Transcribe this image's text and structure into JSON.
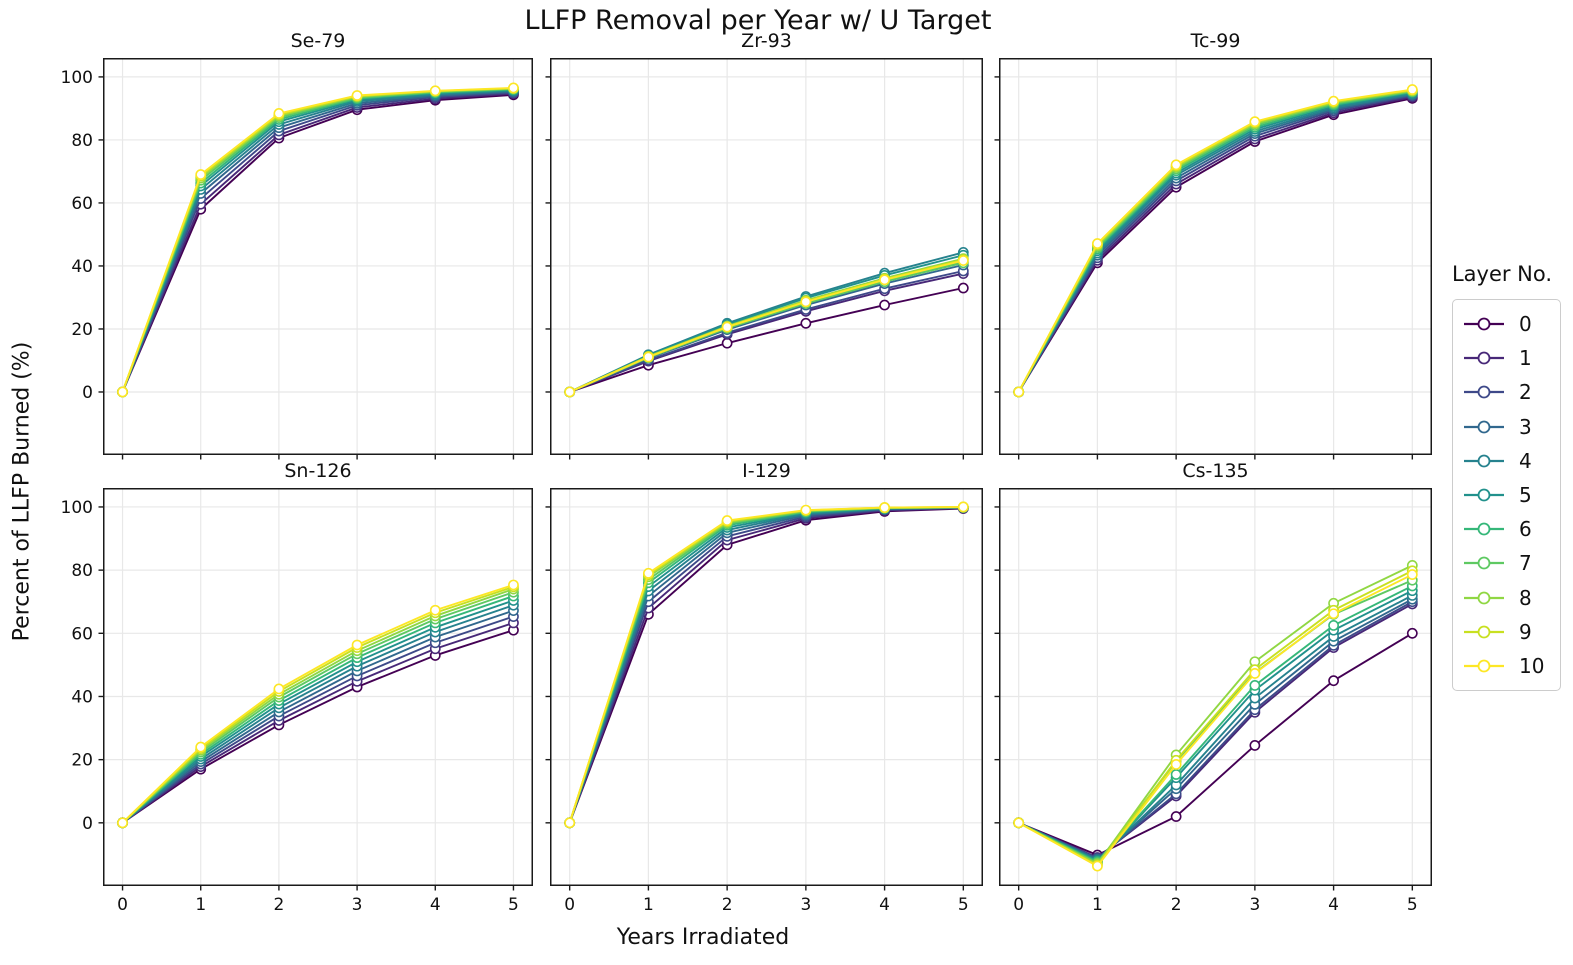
{
  "figure": {
    "title": "LLFP Removal per Year w/ U Target",
    "xlabel": "Years Irradiated",
    "ylabel": "Percent of LLFP Burned (%)"
  },
  "legend": {
    "title": "Layer No.",
    "entries": [
      {
        "label": "0",
        "color": "#440154"
      },
      {
        "label": "1",
        "color": "#482878"
      },
      {
        "label": "2",
        "color": "#3e4989"
      },
      {
        "label": "3",
        "color": "#31688e"
      },
      {
        "label": "4",
        "color": "#26828e"
      },
      {
        "label": "5",
        "color": "#21918c"
      },
      {
        "label": "6",
        "color": "#35b779"
      },
      {
        "label": "7",
        "color": "#5ec962"
      },
      {
        "label": "8",
        "color": "#90d743"
      },
      {
        "label": "9",
        "color": "#c8e020"
      },
      {
        "label": "10",
        "color": "#fde725"
      }
    ]
  },
  "axes": {
    "xlim": [
      -0.25,
      5.25
    ],
    "ylim": [
      -20,
      106
    ],
    "x_ticks": [
      0,
      1,
      2,
      3,
      4,
      5
    ],
    "y_ticks": [
      0,
      20,
      40,
      60,
      80,
      100
    ],
    "grid": true,
    "grid_color": "#e8e8e8",
    "spine_color": "#1a1a1a",
    "marker_fill": "#ffffff"
  },
  "chart_data": [
    {
      "type": "line",
      "title": "Se-79",
      "x": [
        0,
        1,
        2,
        3,
        4,
        5
      ],
      "series": [
        {
          "name": "0",
          "values": [
            0,
            58.0,
            80.6,
            89.6,
            92.6,
            94.3
          ]
        },
        {
          "name": "1",
          "values": [
            0,
            59.6,
            81.6,
            90.3,
            93.1,
            94.7
          ]
        },
        {
          "name": "2",
          "values": [
            0,
            61.4,
            82.8,
            91.0,
            93.6,
            95.0
          ]
        },
        {
          "name": "3",
          "values": [
            0,
            63.0,
            83.9,
            91.6,
            94.0,
            95.3
          ]
        },
        {
          "name": "4",
          "values": [
            0,
            64.3,
            84.9,
            92.2,
            94.4,
            95.6
          ]
        },
        {
          "name": "5",
          "values": [
            0,
            65.4,
            85.8,
            92.7,
            94.7,
            95.8
          ]
        },
        {
          "name": "6",
          "values": [
            0,
            66.3,
            86.5,
            93.1,
            95.0,
            96.0
          ]
        },
        {
          "name": "7",
          "values": [
            0,
            67.2,
            87.1,
            93.4,
            95.2,
            96.2
          ]
        },
        {
          "name": "8",
          "values": [
            0,
            67.9,
            87.6,
            93.7,
            95.4,
            96.3
          ]
        },
        {
          "name": "9",
          "values": [
            0,
            68.5,
            88.0,
            93.9,
            95.5,
            96.4
          ]
        },
        {
          "name": "10",
          "values": [
            0,
            69.0,
            88.4,
            94.1,
            95.6,
            96.5
          ]
        }
      ]
    },
    {
      "type": "line",
      "title": "Zr-93",
      "x": [
        0,
        1,
        2,
        3,
        4,
        5
      ],
      "series": [
        {
          "name": "0",
          "values": [
            0,
            8.5,
            15.5,
            21.8,
            27.6,
            33.0
          ]
        },
        {
          "name": "1",
          "values": [
            0,
            9.8,
            18.3,
            25.6,
            32.1,
            37.6
          ]
        },
        {
          "name": "2",
          "values": [
            0,
            10.1,
            18.8,
            26.2,
            32.8,
            38.4
          ]
        },
        {
          "name": "3",
          "values": [
            0,
            10.7,
            19.8,
            27.6,
            34.4,
            40.3
          ]
        },
        {
          "name": "4",
          "values": [
            0,
            11.8,
            21.8,
            30.3,
            37.7,
            44.3
          ]
        },
        {
          "name": "5",
          "values": [
            0,
            11.6,
            21.4,
            29.8,
            37.0,
            43.4
          ]
        },
        {
          "name": "6",
          "values": [
            0,
            11.0,
            20.4,
            28.4,
            35.3,
            41.3
          ]
        },
        {
          "name": "7",
          "values": [
            0,
            10.9,
            20.2,
            28.1,
            35.0,
            41.0
          ]
        },
        {
          "name": "8",
          "values": [
            0,
            11.3,
            20.9,
            29.1,
            36.1,
            42.3
          ]
        },
        {
          "name": "9",
          "values": [
            0,
            11.2,
            20.7,
            28.8,
            35.8,
            42.0
          ]
        },
        {
          "name": "10",
          "values": [
            0,
            11.1,
            20.6,
            28.6,
            35.6,
            41.7
          ]
        }
      ]
    },
    {
      "type": "line",
      "title": "Tc-99",
      "x": [
        0,
        1,
        2,
        3,
        4,
        5
      ],
      "series": [
        {
          "name": "0",
          "values": [
            0,
            41.0,
            65.0,
            79.5,
            88.0,
            93.2
          ]
        },
        {
          "name": "1",
          "values": [
            0,
            41.8,
            66.0,
            80.3,
            88.6,
            93.6
          ]
        },
        {
          "name": "2",
          "values": [
            0,
            42.6,
            67.0,
            81.2,
            89.2,
            94.0
          ]
        },
        {
          "name": "3",
          "values": [
            0,
            43.4,
            67.9,
            82.0,
            89.7,
            94.3
          ]
        },
        {
          "name": "4",
          "values": [
            0,
            44.1,
            68.8,
            82.7,
            90.2,
            94.6
          ]
        },
        {
          "name": "5",
          "values": [
            0,
            44.8,
            69.5,
            83.4,
            90.7,
            94.9
          ]
        },
        {
          "name": "6",
          "values": [
            0,
            45.4,
            70.2,
            84.0,
            91.1,
            95.2
          ]
        },
        {
          "name": "7",
          "values": [
            0,
            45.9,
            70.8,
            84.6,
            91.5,
            95.4
          ]
        },
        {
          "name": "8",
          "values": [
            0,
            46.4,
            71.3,
            85.1,
            91.8,
            95.6
          ]
        },
        {
          "name": "9",
          "values": [
            0,
            46.8,
            71.7,
            85.5,
            92.1,
            95.8
          ]
        },
        {
          "name": "10",
          "values": [
            0,
            47.1,
            72.1,
            85.8,
            92.3,
            96.0
          ]
        }
      ]
    },
    {
      "type": "line",
      "title": "Sn-126",
      "x": [
        0,
        1,
        2,
        3,
        4,
        5
      ],
      "series": [
        {
          "name": "0",
          "values": [
            0,
            17.0,
            31.0,
            43.0,
            53.0,
            61.0
          ]
        },
        {
          "name": "1",
          "values": [
            0,
            17.8,
            32.4,
            44.8,
            55.1,
            63.3
          ]
        },
        {
          "name": "2",
          "values": [
            0,
            18.6,
            33.8,
            46.5,
            57.0,
            65.3
          ]
        },
        {
          "name": "3",
          "values": [
            0,
            19.4,
            35.1,
            48.1,
            58.8,
            67.2
          ]
        },
        {
          "name": "4",
          "values": [
            0,
            20.2,
            36.4,
            49.6,
            60.4,
            68.9
          ]
        },
        {
          "name": "5",
          "values": [
            0,
            21.0,
            37.6,
            51.0,
            61.9,
            70.4
          ]
        },
        {
          "name": "6",
          "values": [
            0,
            21.7,
            38.7,
            52.3,
            63.3,
            71.8
          ]
        },
        {
          "name": "7",
          "values": [
            0,
            22.4,
            39.8,
            53.5,
            64.5,
            73.0
          ]
        },
        {
          "name": "8",
          "values": [
            0,
            23.0,
            40.7,
            54.5,
            65.5,
            74.0
          ]
        },
        {
          "name": "9",
          "values": [
            0,
            23.5,
            41.6,
            55.5,
            66.5,
            74.7
          ]
        },
        {
          "name": "10",
          "values": [
            0,
            24.0,
            42.4,
            56.3,
            67.3,
            75.3
          ]
        }
      ]
    },
    {
      "type": "line",
      "title": "I-129",
      "x": [
        0,
        1,
        2,
        3,
        4,
        5
      ],
      "series": [
        {
          "name": "0",
          "values": [
            0,
            66.0,
            88.0,
            95.8,
            98.6,
            99.5
          ]
        },
        {
          "name": "1",
          "values": [
            0,
            68.0,
            89.5,
            96.4,
            98.9,
            99.6
          ]
        },
        {
          "name": "2",
          "values": [
            0,
            70.0,
            90.7,
            96.9,
            99.1,
            99.7
          ]
        },
        {
          "name": "3",
          "values": [
            0,
            71.8,
            91.8,
            97.4,
            99.3,
            99.8
          ]
        },
        {
          "name": "4",
          "values": [
            0,
            73.4,
            92.7,
            97.8,
            99.4,
            99.8
          ]
        },
        {
          "name": "5",
          "values": [
            0,
            74.8,
            93.5,
            98.1,
            99.5,
            99.9
          ]
        },
        {
          "name": "6",
          "values": [
            0,
            76.0,
            94.2,
            98.4,
            99.6,
            99.9
          ]
        },
        {
          "name": "7",
          "values": [
            0,
            77.0,
            94.7,
            98.6,
            99.7,
            99.9
          ]
        },
        {
          "name": "8",
          "values": [
            0,
            77.9,
            95.1,
            98.8,
            99.7,
            99.9
          ]
        },
        {
          "name": "9",
          "values": [
            0,
            78.5,
            95.4,
            98.9,
            99.8,
            100.0
          ]
        },
        {
          "name": "10",
          "values": [
            0,
            79.0,
            95.7,
            99.0,
            99.8,
            100.0
          ]
        }
      ]
    },
    {
      "type": "line",
      "title": "Cs-135",
      "x": [
        0,
        1,
        2,
        3,
        4,
        5
      ],
      "series": [
        {
          "name": "0",
          "values": [
            0,
            -10.2,
            2.0,
            24.5,
            45.0,
            60.0
          ]
        },
        {
          "name": "1",
          "values": [
            0,
            -11.0,
            8.5,
            35.0,
            55.5,
            69.3
          ]
        },
        {
          "name": "2",
          "values": [
            0,
            -11.2,
            9.2,
            35.8,
            56.2,
            70.0
          ]
        },
        {
          "name": "3",
          "values": [
            0,
            -11.5,
            10.8,
            37.5,
            57.5,
            70.8
          ]
        },
        {
          "name": "4",
          "values": [
            0,
            -11.8,
            12.0,
            39.5,
            59.0,
            72.0
          ]
        },
        {
          "name": "5",
          "values": [
            0,
            -12.1,
            14.3,
            42.0,
            61.0,
            73.5
          ]
        },
        {
          "name": "6",
          "values": [
            0,
            -12.3,
            15.3,
            43.5,
            62.5,
            75.0
          ]
        },
        {
          "name": "7",
          "values": [
            0,
            -12.7,
            19.5,
            47.5,
            66.0,
            76.8
          ]
        },
        {
          "name": "8",
          "values": [
            0,
            -13.0,
            21.5,
            51.0,
            69.5,
            81.5
          ]
        },
        {
          "name": "9",
          "values": [
            0,
            -13.4,
            19.8,
            48.5,
            67.3,
            79.8
          ]
        },
        {
          "name": "10",
          "values": [
            0,
            -13.7,
            18.5,
            47.3,
            66.2,
            78.6
          ]
        }
      ]
    }
  ]
}
